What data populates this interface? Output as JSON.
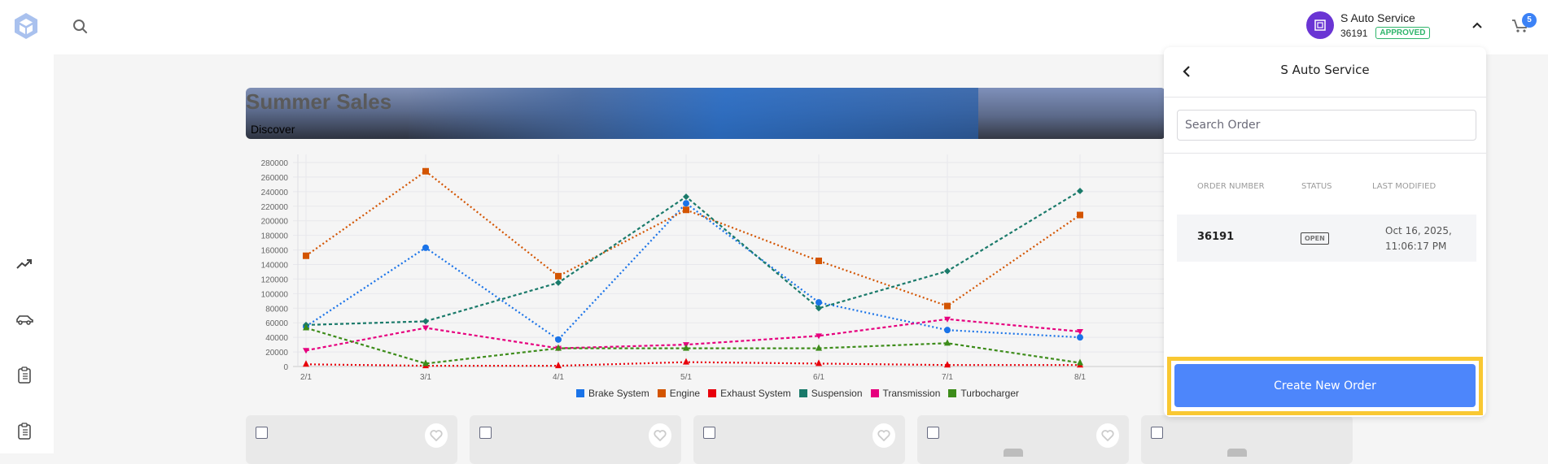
{
  "topbar": {
    "account_name": "S Auto Service",
    "account_number": "36191",
    "account_status": "APPROVED",
    "cart_count": "5"
  },
  "sidebar": {
    "items": [
      {
        "icon": "trending-up-icon"
      },
      {
        "icon": "car-icon"
      },
      {
        "icon": "clipboard-list-icon"
      },
      {
        "icon": "clipboard-list-icon"
      }
    ]
  },
  "banner": {
    "title": "Summer Sales",
    "subtitle": "Discover"
  },
  "chart_data": {
    "type": "line",
    "title": "",
    "xlabel": "",
    "ylabel": "",
    "categories": [
      "2/1",
      "3/1",
      "4/1",
      "5/1",
      "6/1",
      "7/1",
      "8/1"
    ],
    "y_ticks": [
      0,
      20000,
      40000,
      60000,
      80000,
      100000,
      120000,
      140000,
      160000,
      180000,
      200000,
      220000,
      240000,
      260000,
      280000
    ],
    "ylim": [
      0,
      280000
    ],
    "grid": true,
    "legend_position": "bottom",
    "series": [
      {
        "name": "Brake System",
        "color": "#1a73e8",
        "marker": "circle",
        "values": [
          55000,
          163000,
          37000,
          224000,
          88000,
          50000,
          40000
        ]
      },
      {
        "name": "Engine",
        "color": "#d35400",
        "marker": "square",
        "values": [
          152000,
          268000,
          124000,
          215000,
          145000,
          83000,
          208000
        ]
      },
      {
        "name": "Exhaust System",
        "color": "#e8000b",
        "marker": "triangle",
        "values": [
          3000,
          1000,
          1000,
          6000,
          4000,
          2000,
          2000
        ]
      },
      {
        "name": "Suspension",
        "color": "#1a7a6a",
        "marker": "diamond",
        "values": [
          57000,
          62000,
          115000,
          233000,
          80000,
          131000,
          241000
        ]
      },
      {
        "name": "Transmission",
        "color": "#e6007e",
        "marker": "triangle-down",
        "values": [
          22000,
          53000,
          25000,
          30000,
          42000,
          65000,
          48000
        ]
      },
      {
        "name": "Turbocharger",
        "color": "#3d8c1a",
        "marker": "triangle",
        "values": [
          53000,
          4000,
          25000,
          25000,
          25000,
          32000,
          5000
        ]
      }
    ]
  },
  "legend": [
    {
      "label": "Brake System",
      "color": "#1a73e8"
    },
    {
      "label": "Engine",
      "color": "#d35400"
    },
    {
      "label": "Exhaust System",
      "color": "#e8000b"
    },
    {
      "label": "Suspension",
      "color": "#1a7a6a"
    },
    {
      "label": "Transmission",
      "color": "#e6007e"
    },
    {
      "label": "Turbocharger",
      "color": "#3d8c1a"
    }
  ],
  "panel": {
    "title": "S Auto Service",
    "search_placeholder": "Search Order",
    "columns": [
      "ORDER NUMBER",
      "STATUS",
      "LAST MODIFIED"
    ],
    "orders": [
      {
        "number": "36191",
        "status": "OPEN",
        "last_modified": "Oct 16, 2025, 11:06:17 PM"
      }
    ],
    "create_button": "Create New Order"
  }
}
